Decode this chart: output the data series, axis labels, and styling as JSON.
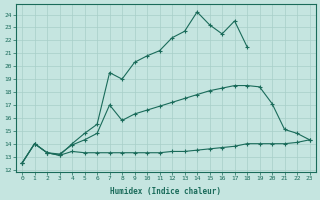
{
  "xlabel": "Humidex (Indice chaleur)",
  "bg_color": "#c5e5e0",
  "line_color": "#1a6b5a",
  "grid_color": "#a8cfc8",
  "xlim": [
    -0.5,
    23.5
  ],
  "ylim": [
    11.8,
    24.8
  ],
  "xticks": [
    0,
    1,
    2,
    3,
    4,
    5,
    6,
    7,
    8,
    9,
    10,
    11,
    12,
    13,
    14,
    15,
    16,
    17,
    18,
    19,
    20,
    21,
    22,
    23
  ],
  "yticks": [
    12,
    13,
    14,
    15,
    16,
    17,
    18,
    19,
    20,
    21,
    22,
    23,
    24
  ],
  "line1_x": [
    0,
    1,
    2,
    3,
    4,
    5,
    6,
    7,
    8,
    9,
    10,
    11,
    12,
    13,
    14,
    15,
    16,
    17,
    18
  ],
  "line1_y": [
    12.5,
    14.0,
    13.3,
    13.1,
    14.0,
    14.8,
    15.5,
    19.5,
    19.0,
    20.3,
    20.8,
    21.2,
    22.2,
    22.7,
    24.2,
    23.2,
    22.5,
    23.5,
    21.5
  ],
  "line2_x": [
    0,
    1,
    2,
    3,
    4,
    5,
    6,
    7,
    8,
    9,
    10,
    11,
    12,
    13,
    14,
    15,
    16,
    17,
    18,
    19,
    20,
    21,
    22,
    23
  ],
  "line2_y": [
    12.5,
    14.0,
    13.3,
    13.2,
    13.9,
    14.3,
    14.8,
    17.0,
    15.8,
    16.3,
    16.6,
    16.9,
    17.2,
    17.5,
    17.8,
    18.1,
    18.3,
    18.5,
    18.5,
    18.4,
    17.1,
    15.1,
    14.8,
    14.3
  ],
  "line3_x": [
    0,
    1,
    2,
    3,
    4,
    5,
    6,
    7,
    8,
    9,
    10,
    11,
    12,
    13,
    14,
    15,
    16,
    17,
    18,
    19,
    20,
    21,
    22,
    23
  ],
  "line3_y": [
    12.5,
    14.0,
    13.3,
    13.1,
    13.4,
    13.3,
    13.3,
    13.3,
    13.3,
    13.3,
    13.3,
    13.3,
    13.4,
    13.4,
    13.5,
    13.6,
    13.7,
    13.8,
    14.0,
    14.0,
    14.0,
    14.0,
    14.1,
    14.3
  ]
}
